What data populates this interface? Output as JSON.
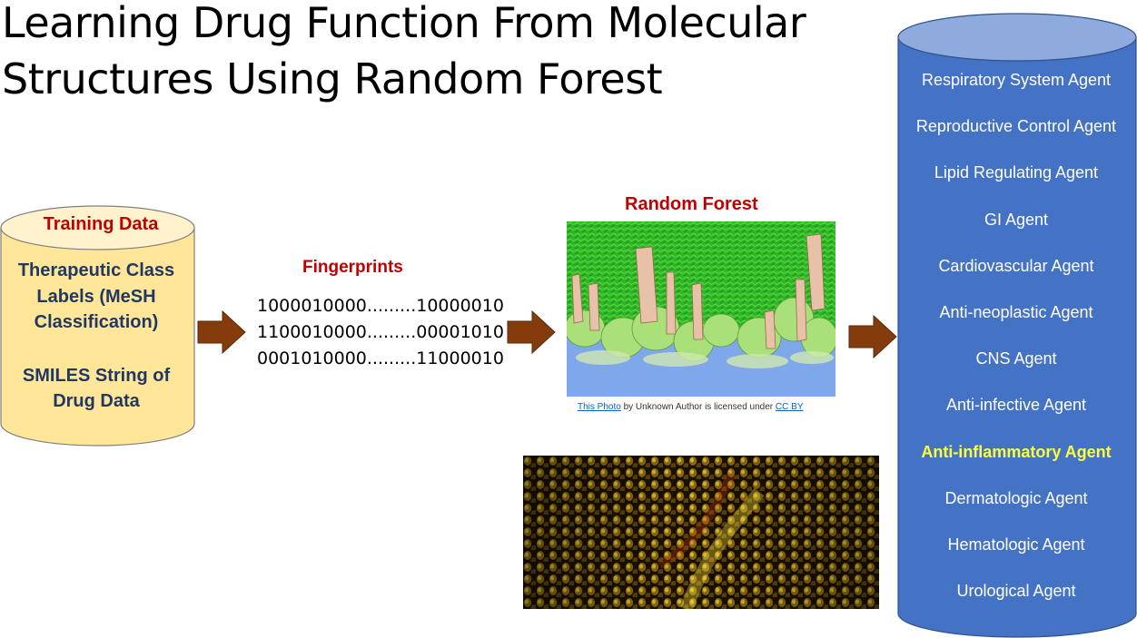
{
  "title": {
    "line1": "Learning Drug Function From Molecular",
    "line2": "Structures Using Random Forest"
  },
  "training_data": {
    "heading": "Training Data",
    "lines_a": [
      "Therapeutic Class",
      "Labels (MeSH",
      "Classification)"
    ],
    "lines_b": [
      "SMILES String of",
      "Drug Data"
    ]
  },
  "fingerprints": {
    "heading": "Fingerprints",
    "lines": [
      "1000010000.........10000010",
      "1100010000.........00001010",
      "0001010000.........11000010"
    ]
  },
  "random_forest": {
    "heading": "Random Forest",
    "attribution": {
      "link1": "This Photo",
      "middle": " by Unknown Author is licensed under ",
      "link2": "CC BY"
    }
  },
  "agents": [
    {
      "label": "Respiratory  System Agent",
      "highlight": false
    },
    {
      "label": "Reproductive  Control Agent",
      "highlight": false
    },
    {
      "label": "Lipid Regulating Agent",
      "highlight": false
    },
    {
      "label": "GI Agent",
      "highlight": false
    },
    {
      "label": "Cardiovascular  Agent",
      "highlight": false
    },
    {
      "label": "Anti-neoplastic  Agent",
      "highlight": false
    },
    {
      "label": "CNS Agent",
      "highlight": false
    },
    {
      "label": "Anti-infective  Agent",
      "highlight": false
    },
    {
      "label": "Anti-inflammatory  Agent",
      "highlight": true
    },
    {
      "label": "Dermatologic  Agent",
      "highlight": false
    },
    {
      "label": "Hematologic  Agent",
      "highlight": false
    },
    {
      "label": "Urological  Agent",
      "highlight": false
    }
  ],
  "colors": {
    "heading_red": "#c00000",
    "navy_text": "#1f3864",
    "left_cylinder_fill": "#ffe699",
    "right_cylinder_fill": "#4472c4",
    "right_cylinder_top": "#8faadc",
    "arrow_fill": "#843c0c",
    "highlight_text": "#ffff3b"
  }
}
